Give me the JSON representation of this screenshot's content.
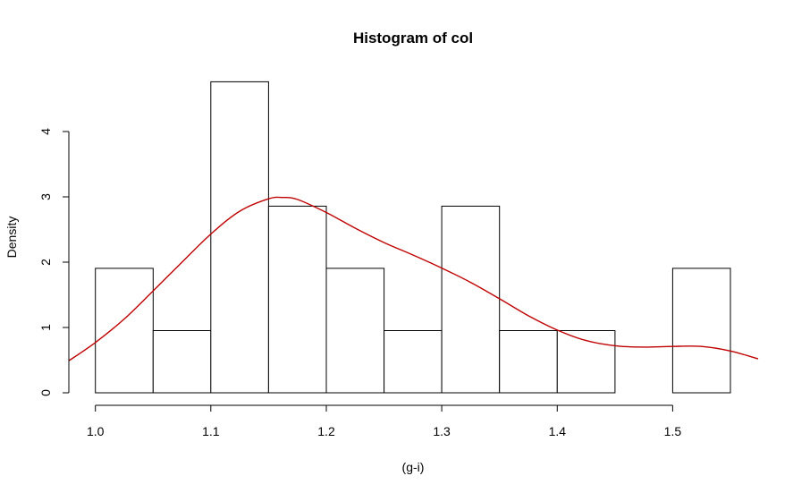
{
  "chart_data": {
    "type": "bar",
    "subtype": "histogram",
    "title": "Histogram of col",
    "xlabel": "(g-i)",
    "ylabel": "Density",
    "xlim": [
      0.977,
      1.574
    ],
    "ylim": [
      0,
      5
    ],
    "x_ticks": [
      1.0,
      1.1,
      1.2,
      1.3,
      1.4,
      1.5
    ],
    "x_tick_labels": [
      "1.0",
      "1.1",
      "1.2",
      "1.3",
      "1.4",
      "1.5"
    ],
    "y_ticks": [
      0,
      1,
      2,
      3,
      4
    ],
    "y_tick_labels": [
      "0",
      "1",
      "2",
      "3",
      "4"
    ],
    "bins": [
      {
        "x0": 1.0,
        "x1": 1.05,
        "density": 1.905
      },
      {
        "x0": 1.05,
        "x1": 1.1,
        "density": 0.952
      },
      {
        "x0": 1.1,
        "x1": 1.15,
        "density": 4.762
      },
      {
        "x0": 1.15,
        "x1": 1.2,
        "density": 2.857
      },
      {
        "x0": 1.2,
        "x1": 1.25,
        "density": 1.905
      },
      {
        "x0": 1.25,
        "x1": 1.3,
        "density": 0.952
      },
      {
        "x0": 1.3,
        "x1": 1.35,
        "density": 2.857
      },
      {
        "x0": 1.35,
        "x1": 1.4,
        "density": 0.952
      },
      {
        "x0": 1.4,
        "x1": 1.45,
        "density": 0.952
      },
      {
        "x0": 1.45,
        "x1": 1.5,
        "density": 0.0
      },
      {
        "x0": 1.5,
        "x1": 1.55,
        "density": 1.905
      }
    ],
    "density_curve": {
      "color": "#c00000",
      "x": [
        0.977,
        1.0,
        1.025,
        1.05,
        1.075,
        1.1,
        1.125,
        1.15,
        1.162,
        1.175,
        1.2,
        1.225,
        1.25,
        1.275,
        1.3,
        1.325,
        1.35,
        1.375,
        1.4,
        1.425,
        1.45,
        1.475,
        1.5,
        1.525,
        1.55,
        1.574
      ],
      "y": [
        0.49,
        0.77,
        1.13,
        1.56,
        2.0,
        2.43,
        2.78,
        2.97,
        2.99,
        2.96,
        2.76,
        2.52,
        2.3,
        2.11,
        1.91,
        1.69,
        1.44,
        1.18,
        0.96,
        0.8,
        0.72,
        0.7,
        0.71,
        0.71,
        0.64,
        0.52
      ]
    }
  }
}
